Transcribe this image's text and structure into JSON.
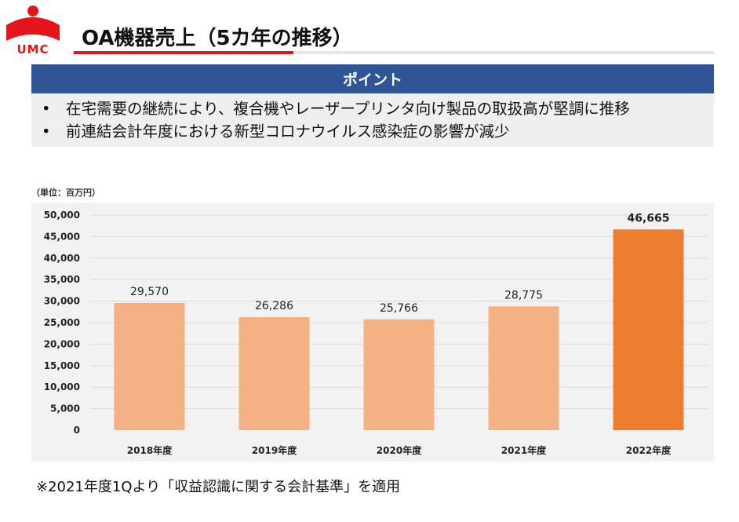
{
  "header": {
    "logo_text": "UMC",
    "title": "OA機器売上（5カ年の推移）"
  },
  "points": {
    "heading": "ポイント",
    "items": [
      "在宅需要の継続により、複合機やレーザープリンタ向け製品の取扱高が堅調に推移",
      "前連結会計年度における新型コロナウイルス感染症の影響が減少"
    ]
  },
  "unit_label": "（単位：百万円）",
  "footnote": "※2021年度1Qより「収益認識に関する会計基準」を適用",
  "colors": {
    "title_rule": "#e5161b",
    "header_band": "#2f5597",
    "bar_normal": "#f4b183",
    "bar_highlight": "#ed7d31"
  },
  "chart_data": {
    "type": "bar",
    "categories": [
      "2018年度",
      "2019年度",
      "2020年度",
      "2021年度",
      "2022年度"
    ],
    "values": [
      29570,
      26286,
      25766,
      28775,
      46665
    ],
    "data_labels": [
      "29,570",
      "26,286",
      "25,766",
      "28,775",
      "46,665"
    ],
    "highlight_index": 4,
    "ylim": [
      0,
      50000
    ],
    "yticks": [
      0,
      5000,
      10000,
      15000,
      20000,
      25000,
      30000,
      35000,
      40000,
      45000,
      50000
    ],
    "ytick_labels": [
      "0",
      "5,000",
      "10,000",
      "15,000",
      "20,000",
      "25,000",
      "30,000",
      "35,000",
      "40,000",
      "45,000",
      "50,000"
    ],
    "grid": true
  }
}
